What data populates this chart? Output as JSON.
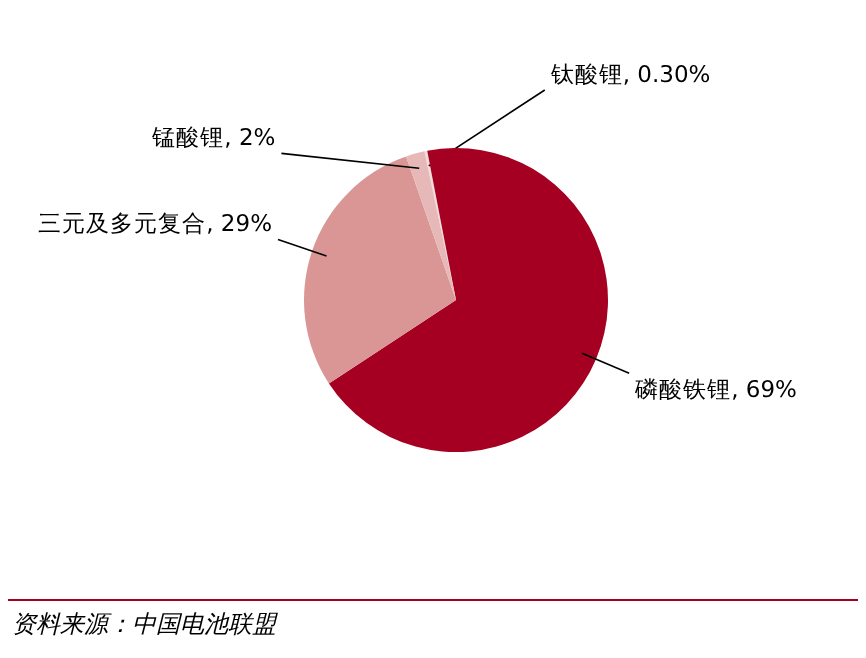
{
  "chart_data": {
    "type": "pie",
    "categories": [
      "钛酸锂",
      "磷酸铁锂",
      "三元及多元复合",
      "锰酸锂"
    ],
    "values": [
      0.3,
      69,
      29,
      2
    ],
    "value_labels": [
      "0.30%",
      "69%",
      "29%",
      "2%"
    ],
    "colors": [
      "#f2dcdb",
      "#a50021",
      "#d99694",
      "#e6b9b8"
    ],
    "annotations": [
      "资料来源：中国电池联盟"
    ]
  }
}
